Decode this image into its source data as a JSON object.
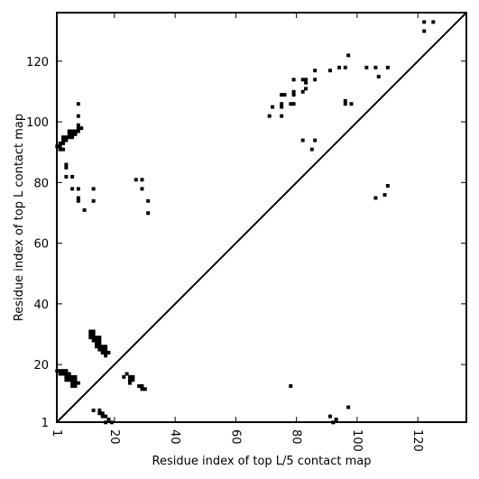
{
  "chart_data": {
    "type": "scatter",
    "title": "",
    "xlabel": "Residue index of top L/5 contact map",
    "ylabel": "Residue index of top L contact map",
    "xlim": [
      1,
      136
    ],
    "ylim": [
      1,
      136
    ],
    "xticks": [
      1,
      20,
      40,
      60,
      80,
      100,
      120
    ],
    "yticks": [
      1,
      20,
      40,
      60,
      80,
      100,
      120
    ],
    "diagonal": true,
    "grid": false,
    "marker": "square",
    "color": "#000000",
    "lower_triangle_points": [
      [
        1,
        18
      ],
      [
        2,
        18
      ],
      [
        2,
        17
      ],
      [
        3,
        17
      ],
      [
        3,
        18
      ],
      [
        4,
        18
      ],
      [
        4,
        17
      ],
      [
        4,
        16
      ],
      [
        4,
        15
      ],
      [
        5,
        15
      ],
      [
        5,
        16
      ],
      [
        5,
        17
      ],
      [
        6,
        13
      ],
      [
        6,
        14
      ],
      [
        6,
        15
      ],
      [
        6,
        16
      ],
      [
        7,
        13
      ],
      [
        7,
        14
      ],
      [
        7,
        15
      ],
      [
        7,
        16
      ],
      [
        8,
        14
      ],
      [
        12,
        29
      ],
      [
        12,
        30
      ],
      [
        12,
        31
      ],
      [
        13,
        28
      ],
      [
        13,
        29
      ],
      [
        13,
        30
      ],
      [
        13,
        31
      ],
      [
        14,
        26
      ],
      [
        14,
        27
      ],
      [
        14,
        28
      ],
      [
        14,
        29
      ],
      [
        15,
        25
      ],
      [
        15,
        26
      ],
      [
        15,
        27
      ],
      [
        15,
        28
      ],
      [
        15,
        29
      ],
      [
        16,
        24
      ],
      [
        16,
        25
      ],
      [
        16,
        26
      ],
      [
        17,
        23
      ],
      [
        17,
        24
      ],
      [
        17,
        25
      ],
      [
        17,
        26
      ],
      [
        18,
        24
      ],
      [
        13,
        5
      ],
      [
        15,
        5
      ],
      [
        15,
        4
      ],
      [
        16,
        4
      ],
      [
        16,
        3
      ],
      [
        17,
        3
      ],
      [
        17,
        1
      ],
      [
        18,
        2
      ],
      [
        19,
        1
      ],
      [
        23,
        16
      ],
      [
        24,
        17
      ],
      [
        25,
        16
      ],
      [
        25,
        15
      ],
      [
        25,
        14
      ],
      [
        26,
        16
      ],
      [
        26,
        15
      ],
      [
        28,
        13
      ],
      [
        29,
        13
      ],
      [
        29,
        12
      ],
      [
        30,
        12
      ],
      [
        78,
        13
      ],
      [
        91,
        3
      ],
      [
        92,
        1
      ],
      [
        93,
        2
      ],
      [
        97,
        6
      ]
    ],
    "upper_triangle_points": [
      [
        1,
        92
      ],
      [
        2,
        91
      ],
      [
        2,
        92
      ],
      [
        2,
        93
      ],
      [
        3,
        91
      ],
      [
        3,
        93
      ],
      [
        3,
        94
      ],
      [
        3,
        95
      ],
      [
        4,
        94
      ],
      [
        4,
        95
      ],
      [
        5,
        95
      ],
      [
        5,
        96
      ],
      [
        5,
        97
      ],
      [
        6,
        95
      ],
      [
        6,
        96
      ],
      [
        6,
        97
      ],
      [
        7,
        97
      ],
      [
        7,
        96
      ],
      [
        8,
        97
      ],
      [
        8,
        98
      ],
      [
        8,
        99
      ],
      [
        8,
        102
      ],
      [
        8,
        106
      ],
      [
        9,
        98
      ],
      [
        4,
        85
      ],
      [
        4,
        86
      ],
      [
        4,
        82
      ],
      [
        6,
        82
      ],
      [
        6,
        78
      ],
      [
        8,
        78
      ],
      [
        8,
        75
      ],
      [
        8,
        74
      ],
      [
        10,
        71
      ],
      [
        13,
        78
      ],
      [
        13,
        74
      ],
      [
        27,
        81
      ],
      [
        29,
        81
      ],
      [
        29,
        78
      ],
      [
        31,
        74
      ],
      [
        31,
        70
      ],
      [
        71,
        102
      ],
      [
        72,
        105
      ],
      [
        75,
        102
      ],
      [
        75,
        105
      ],
      [
        75,
        106
      ],
      [
        75,
        109
      ],
      [
        76,
        109
      ],
      [
        78,
        106
      ],
      [
        79,
        106
      ],
      [
        79,
        109
      ],
      [
        79,
        110
      ],
      [
        79,
        114
      ],
      [
        82,
        110
      ],
      [
        82,
        114
      ],
      [
        82,
        94
      ],
      [
        83,
        111
      ],
      [
        83,
        113
      ],
      [
        83,
        114
      ],
      [
        85,
        91
      ],
      [
        86,
        94
      ],
      [
        86,
        114
      ],
      [
        86,
        117
      ],
      [
        91,
        117
      ],
      [
        94,
        118
      ],
      [
        96,
        118
      ],
      [
        96,
        106
      ],
      [
        96,
        107
      ],
      [
        97,
        122
      ],
      [
        98,
        106
      ],
      [
        103,
        118
      ],
      [
        106,
        118
      ],
      [
        107,
        115
      ],
      [
        110,
        118
      ],
      [
        106,
        75
      ],
      [
        109,
        76
      ],
      [
        110,
        79
      ],
      [
        122,
        130
      ],
      [
        122,
        133
      ],
      [
        125,
        133
      ]
    ]
  }
}
